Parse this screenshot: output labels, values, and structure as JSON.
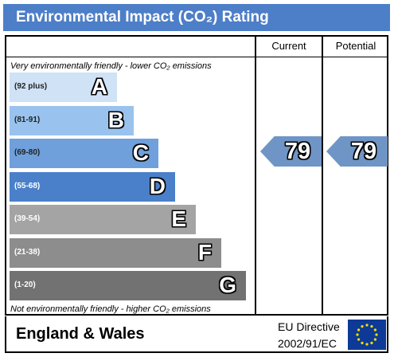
{
  "header": {
    "title": "Environmental Impact (CO₂) Rating",
    "color": "#4d7ec8"
  },
  "columns": {
    "current": "Current",
    "potential": "Potential"
  },
  "notes": {
    "top": "Very environmentally friendly - lower CO₂ emissions",
    "bottom": "Not environmentally friendly - higher CO₂ emissions"
  },
  "chart_data": {
    "type": "bar",
    "categories": [
      "A",
      "B",
      "C",
      "D",
      "E",
      "F",
      "G"
    ],
    "ranges": [
      "(92 plus)",
      "(81-91)",
      "(69-80)",
      "(55-68)",
      "(39-54)",
      "(21-38)",
      "(1-20)"
    ],
    "colors": [
      "#cfe2f6",
      "#99c3ee",
      "#6fa0dc",
      "#4a80c9",
      "#a4a4a4",
      "#8d8d8d",
      "#727272"
    ],
    "current": 79,
    "potential": 79,
    "current_band": "C",
    "potential_band": "C"
  },
  "footer": {
    "region": "England & Wales",
    "directive_line1": "EU Directive",
    "directive_line2": "2002/91/EC"
  }
}
